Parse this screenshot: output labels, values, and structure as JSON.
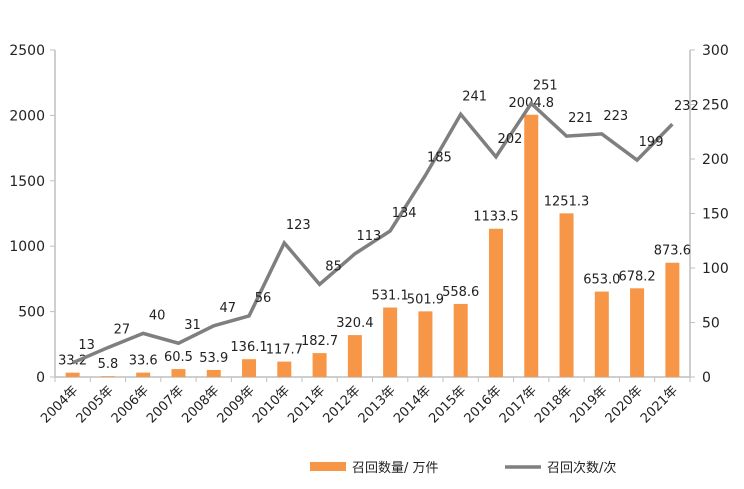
{
  "chart_data": {
    "type": "bar+line",
    "title": "",
    "categories": [
      "2004年",
      "2005年",
      "2006年",
      "2007年",
      "2008年",
      "2009年",
      "2010年",
      "2011年",
      "2012年",
      "2013年",
      "2014年",
      "2015年",
      "2016年",
      "2017年",
      "2018年",
      "2019年",
      "2020年",
      "2021年"
    ],
    "series": [
      {
        "name": "召回数量/ 万件",
        "type": "bar",
        "axis": "left",
        "color": "#F79646",
        "values": [
          33.2,
          5.8,
          33.6,
          60.5,
          53.9,
          136.1,
          117.7,
          182.7,
          320.4,
          531.1,
          501.9,
          558.6,
          1133.5,
          2004.8,
          1251.3,
          653.0,
          678.2,
          873.6
        ],
        "labels": [
          "33.2",
          "5.8",
          "33.6",
          "60.5",
          "53.9",
          "136.1",
          "117.7",
          "182.7",
          "320.4",
          "531.1",
          "501.9",
          "558.6",
          "1133.5",
          "2004.8",
          "1251.3",
          "653.0",
          "678.2",
          "873.6"
        ]
      },
      {
        "name": "召回次数/次",
        "type": "line",
        "axis": "right",
        "color": "#7F7F7F",
        "values": [
          13,
          27,
          40,
          31,
          47,
          56,
          123,
          85,
          113,
          134,
          185,
          241,
          202,
          251,
          221,
          223,
          199,
          232
        ],
        "labels": [
          "13",
          "27",
          "40",
          "31",
          "47",
          "56",
          "123",
          "85",
          "113",
          "134",
          "185",
          "241",
          "202",
          "251",
          "221",
          "223",
          "199",
          "232"
        ]
      }
    ],
    "y_left": {
      "lim": [
        0,
        2500
      ],
      "ticks": [
        "0",
        "500",
        "1000",
        "1500",
        "2000",
        "2500"
      ]
    },
    "y_right": {
      "lim": [
        0,
        300
      ],
      "ticks": [
        "0",
        "50",
        "100",
        "150",
        "200",
        "250",
        "300"
      ]
    },
    "grid": false,
    "legend": "bottom"
  }
}
